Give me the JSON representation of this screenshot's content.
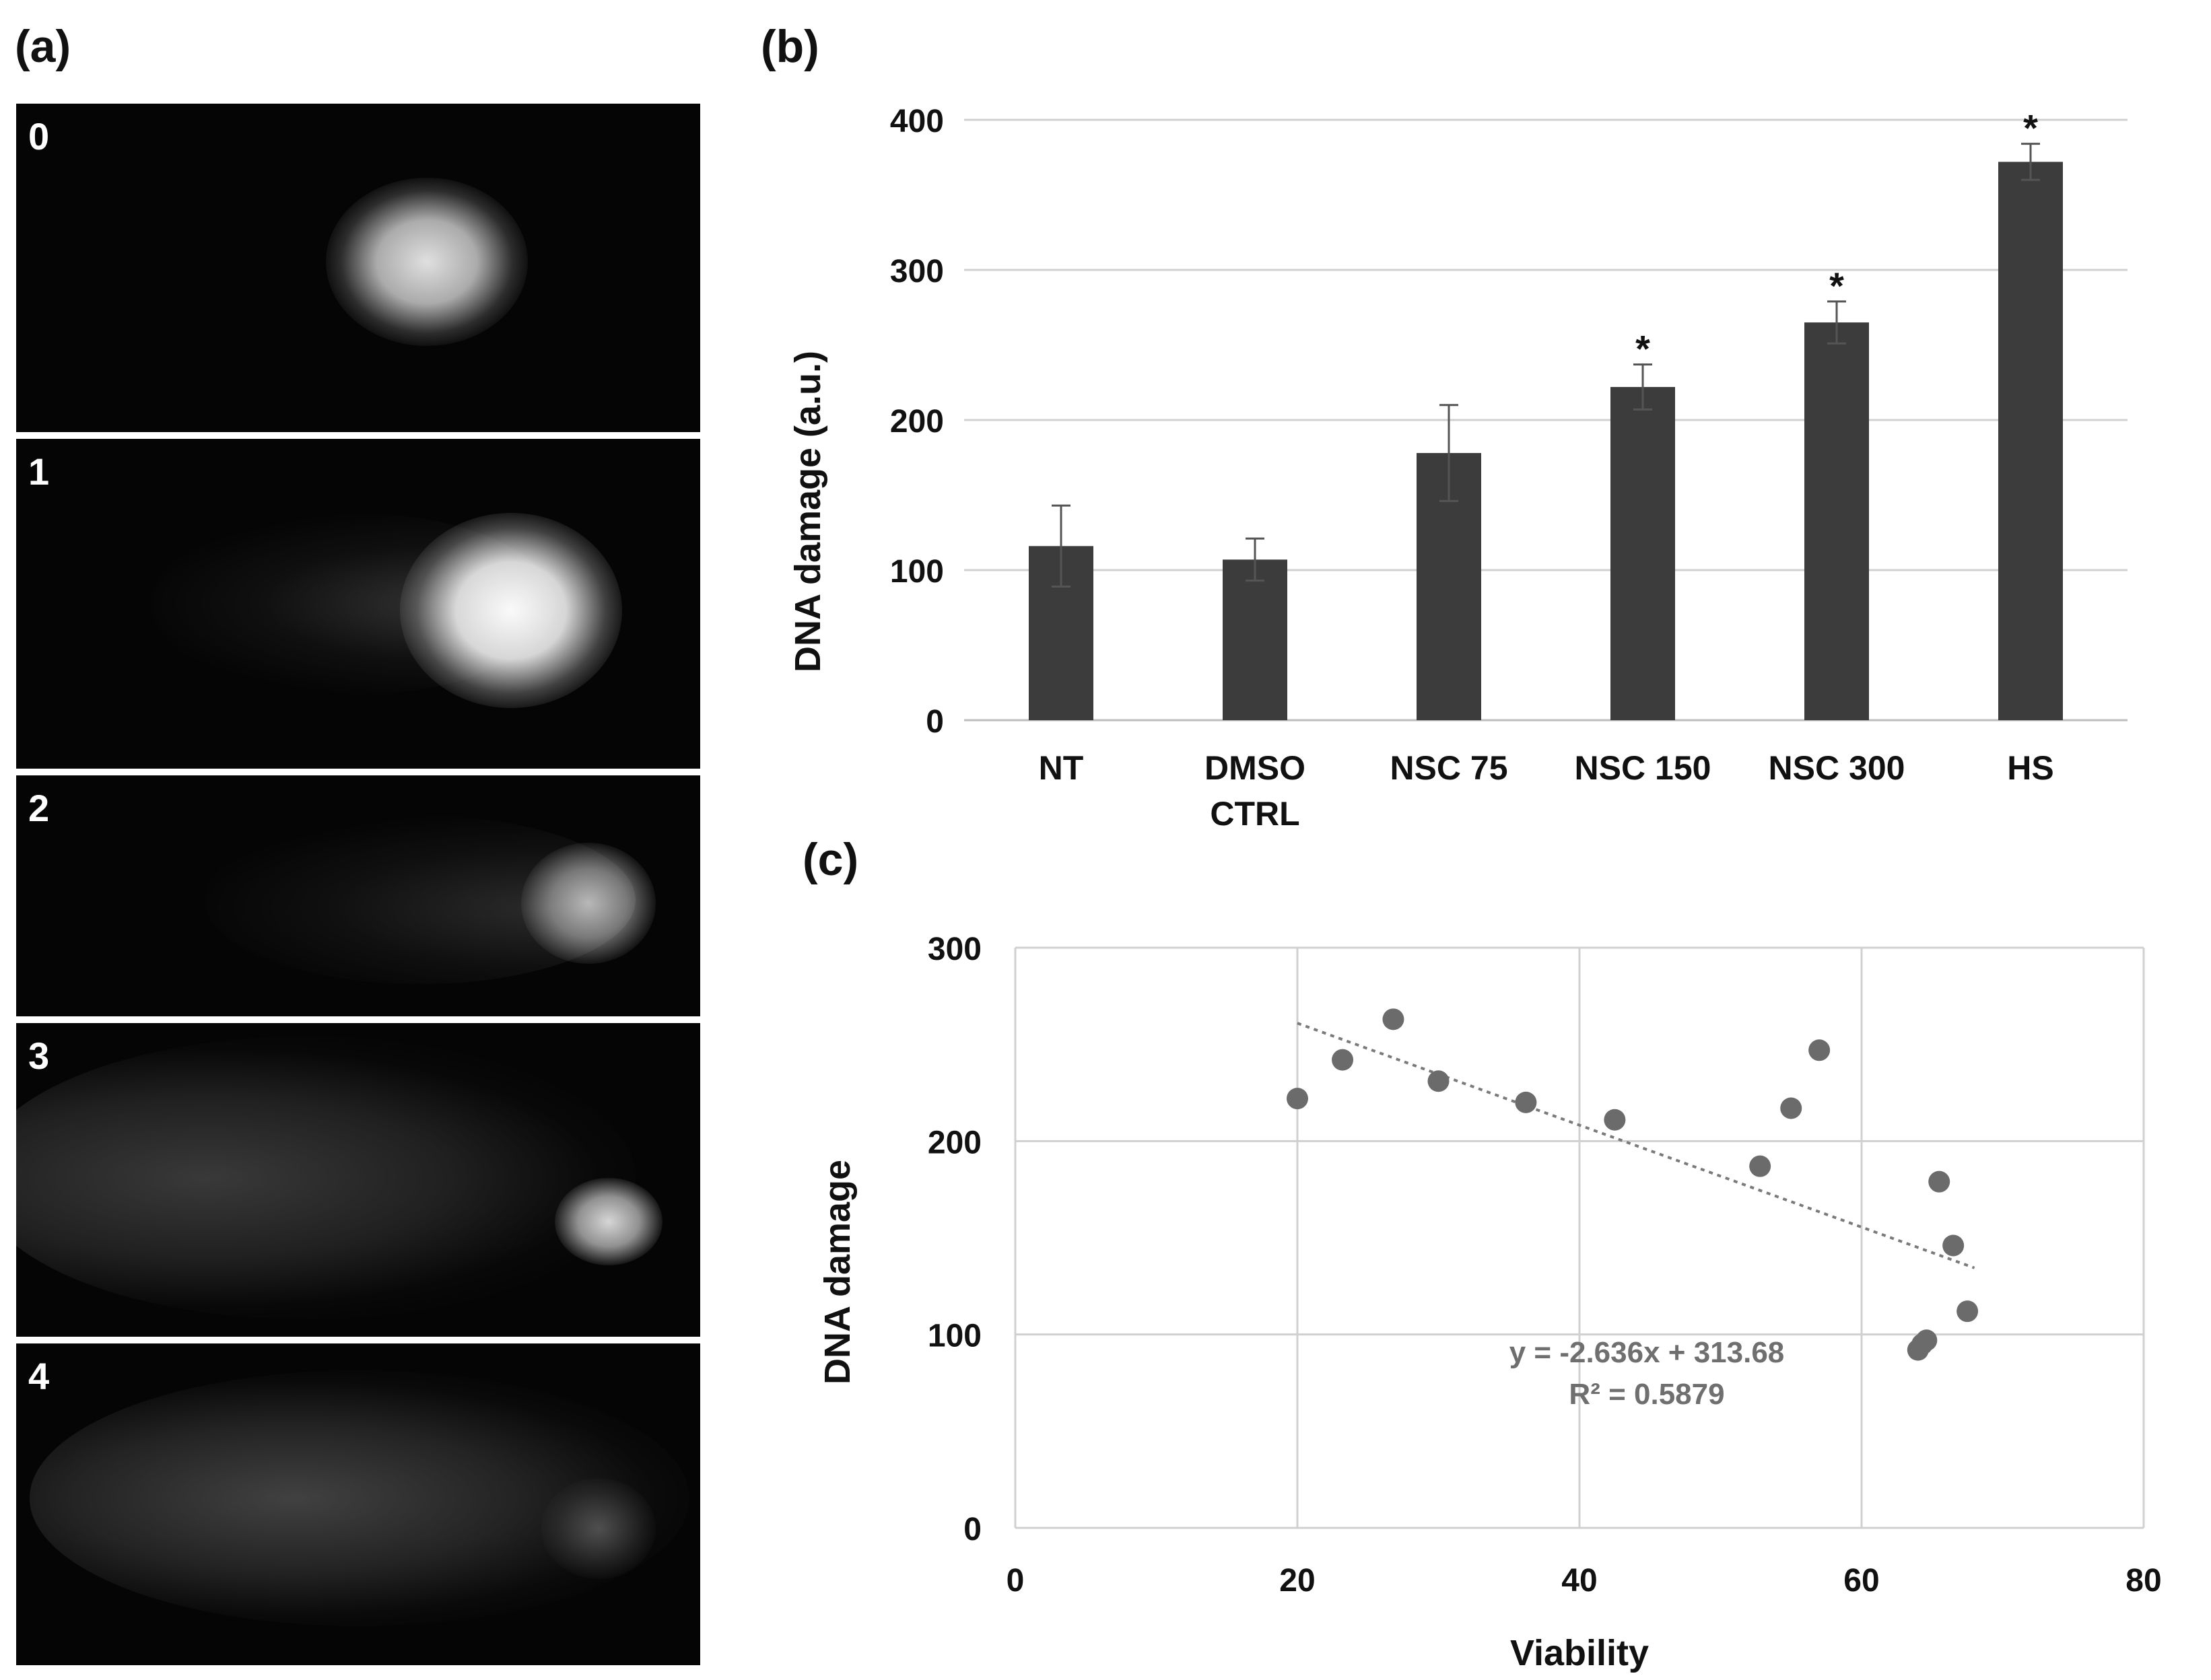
{
  "panel_labels": {
    "a": "(a)",
    "b": "(b)",
    "c": "(c)"
  },
  "comet_images": [
    {
      "label": "0"
    },
    {
      "label": "1"
    },
    {
      "label": "2"
    },
    {
      "label": "3"
    },
    {
      "label": "4"
    }
  ],
  "colors": {
    "bar": "#3c3c3c",
    "point": "#6b6b6b",
    "grid": "#d0d0d0",
    "trend": "#7a7a7a"
  },
  "chart_data": [
    {
      "type": "bar",
      "panel": "b",
      "title": "",
      "xlabel": "",
      "ylabel": "DNA damage (a.u.)",
      "ylim": [
        0,
        400
      ],
      "yticks": [
        "0",
        "100",
        "200",
        "300",
        "400"
      ],
      "categories": [
        {
          "line1": "NT",
          "line2": ""
        },
        {
          "line1": "DMSO",
          "line2": "CTRL"
        },
        {
          "line1": "NSC 75",
          "line2": ""
        },
        {
          "line1": "NSC 150",
          "line2": ""
        },
        {
          "line1": "NSC 300",
          "line2": ""
        },
        {
          "line1": "HS",
          "line2": ""
        }
      ],
      "values": [
        116,
        107,
        178,
        222,
        265,
        372
      ],
      "errors": [
        27,
        14,
        32,
        15,
        14,
        12
      ],
      "significant": [
        false,
        false,
        false,
        true,
        true,
        true
      ],
      "sig_marker": "*",
      "grid": true
    },
    {
      "type": "scatter",
      "panel": "c",
      "xlabel": "Viability",
      "ylabel": "DNA damage",
      "xlim": [
        0,
        80
      ],
      "ylim": [
        0,
        300
      ],
      "xticks": [
        "0",
        "20",
        "40",
        "60",
        "80"
      ],
      "yticks": [
        "0",
        "100",
        "200",
        "300"
      ],
      "grid": true,
      "points": [
        {
          "x": 20.0,
          "y": 222
        },
        {
          "x": 23.2,
          "y": 242
        },
        {
          "x": 26.8,
          "y": 263
        },
        {
          "x": 30.0,
          "y": 231
        },
        {
          "x": 36.2,
          "y": 220
        },
        {
          "x": 42.5,
          "y": 211
        },
        {
          "x": 52.8,
          "y": 187
        },
        {
          "x": 55.0,
          "y": 217
        },
        {
          "x": 57.0,
          "y": 247
        },
        {
          "x": 64.0,
          "y": 92
        },
        {
          "x": 64.3,
          "y": 95
        },
        {
          "x": 64.6,
          "y": 97
        },
        {
          "x": 65.5,
          "y": 179
        },
        {
          "x": 66.5,
          "y": 146
        },
        {
          "x": 67.5,
          "y": 112
        }
      ],
      "trendline": {
        "slope": -2.636,
        "intercept": 313.68,
        "x_from": 20,
        "x_to": 68,
        "style": "dotted"
      },
      "equation": "y = -2.636x + 313.68",
      "r_squared": "R² = 0.5879"
    }
  ]
}
